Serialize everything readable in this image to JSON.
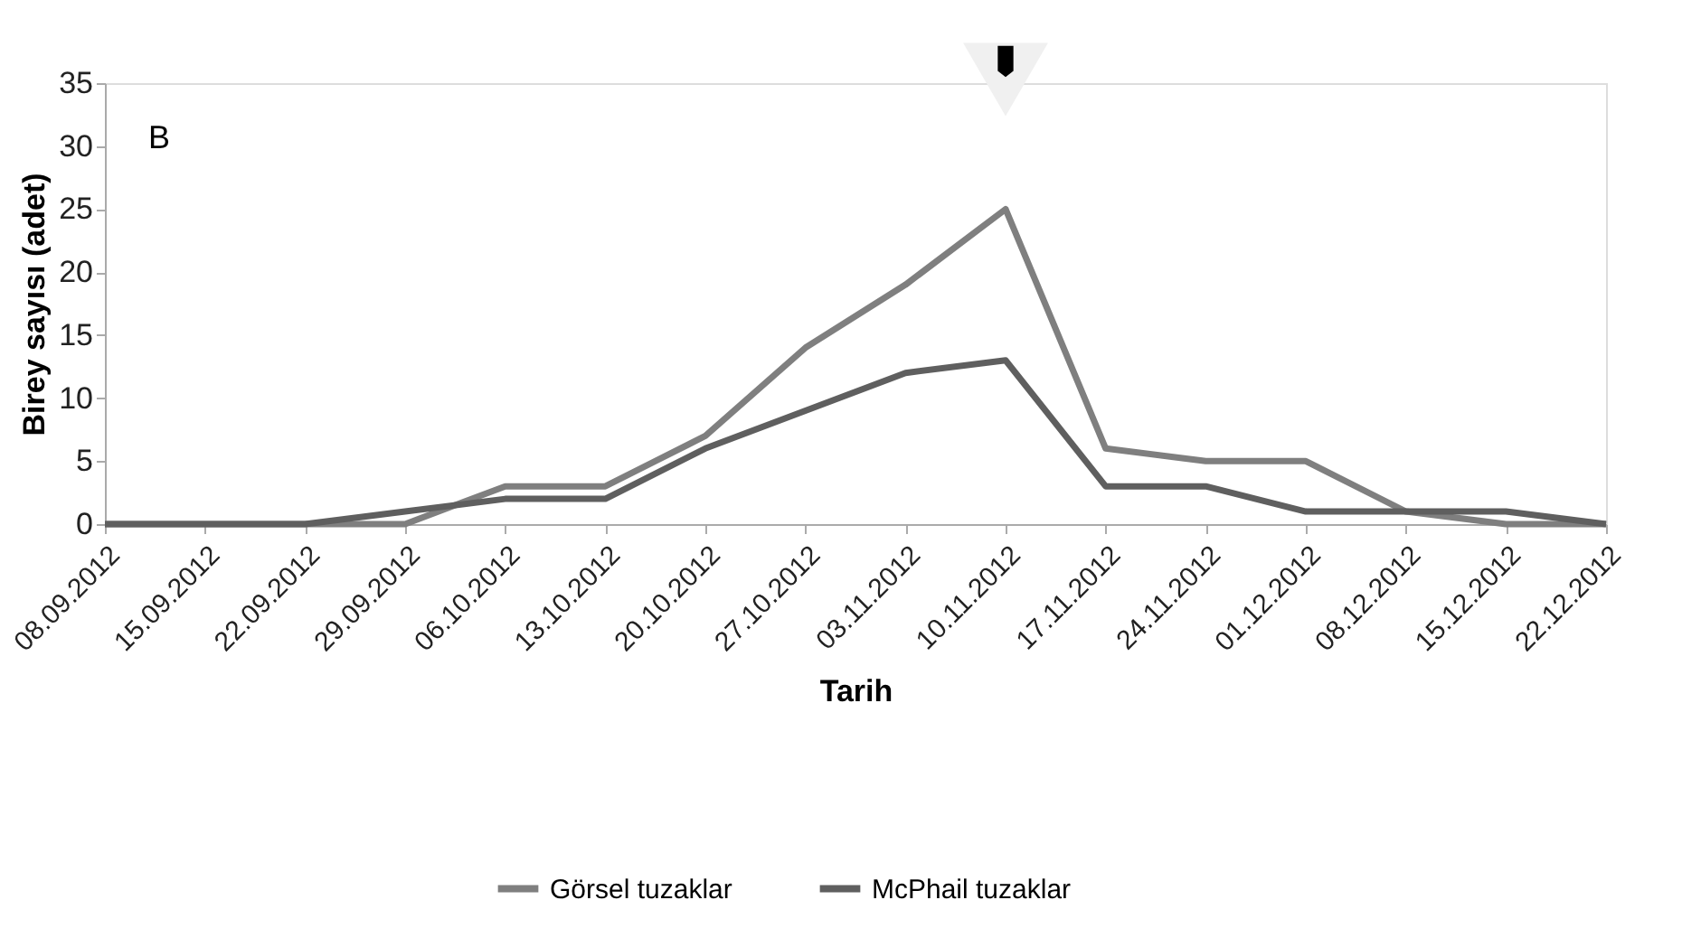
{
  "chart_data": {
    "type": "line",
    "xlabel": "Tarih",
    "ylabel": "Birey sayısı (adet)",
    "categories": [
      "08.09.2012",
      "15.09.2012",
      "22.09.2012",
      "29.09.2012",
      "06.10.2012",
      "13.10.2012",
      "20.10.2012",
      "27.10.2012",
      "03.11.2012",
      "10.11.2012",
      "17.11.2012",
      "24.11.2012",
      "01.12.2012",
      "08.12.2012",
      "15.12.2012",
      "22.12.2012"
    ],
    "series": [
      {
        "name": "Görsel tuzaklar",
        "color": "#7f7f7f",
        "values": [
          0,
          0,
          0,
          0,
          3,
          3,
          7,
          14,
          19,
          25,
          6,
          5,
          5,
          1,
          0,
          0
        ]
      },
      {
        "name": "McPhail tuzaklar",
        "color": "#5f5f5f",
        "values": [
          0,
          0,
          0,
          1,
          2,
          2,
          6,
          9,
          12,
          13,
          3,
          3,
          1,
          1,
          1,
          0
        ]
      }
    ],
    "ylim": [
      0,
      35
    ],
    "yticks": [
      0,
      5,
      10,
      15,
      20,
      25,
      30,
      35
    ],
    "grid": false,
    "legend": "bottom",
    "marker": "none",
    "line_style": "solid",
    "annotations": [
      "B"
    ]
  }
}
